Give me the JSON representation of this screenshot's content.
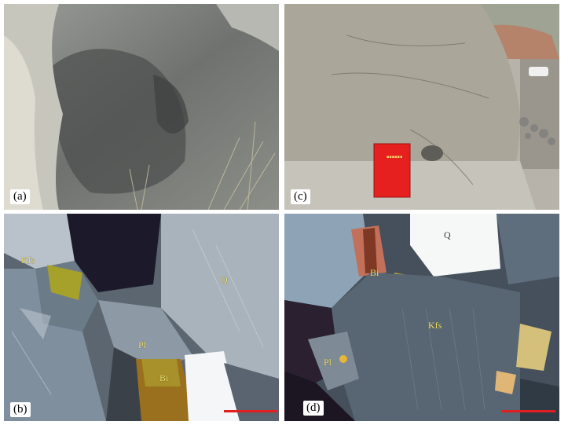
{
  "panels": {
    "a": {
      "label": "(a)"
    },
    "b": {
      "label": "(b)",
      "minerals": {
        "kfs": "Kfs",
        "q": "Q",
        "pl": "Pl",
        "bi": "Bi"
      },
      "scale_color": "#e02020"
    },
    "c": {
      "label": "(c)"
    },
    "d": {
      "label": "(d)",
      "minerals": {
        "q": "Q",
        "bi": "Bi",
        "kfs": "Kfs",
        "pl": "Pl"
      },
      "scale_color": "#e02020"
    }
  }
}
